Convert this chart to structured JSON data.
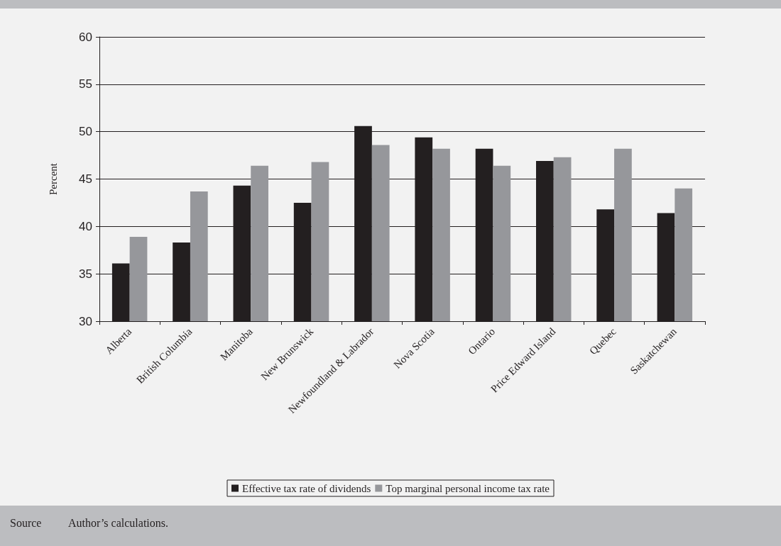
{
  "chart_data": {
    "type": "bar",
    "ylabel": "Percent",
    "categories": [
      "Alberta",
      "British Columbia",
      "Manitoba",
      "New Brunswick",
      "Newfoundland & Labrador",
      "Nova Scotia",
      "Ontario",
      "Price Edward Island",
      "Quebec",
      "Saskatchewan"
    ],
    "series": [
      {
        "name": "Effective tax rate of dividends",
        "color": "#231f20",
        "values": [
          36.1,
          38.3,
          44.3,
          42.5,
          50.6,
          49.4,
          48.2,
          46.9,
          41.8,
          41.4
        ]
      },
      {
        "name": "Top marginal personal income tax rate",
        "color": "#96979b",
        "values": [
          38.9,
          43.7,
          46.4,
          46.8,
          48.6,
          48.2,
          46.4,
          47.3,
          48.2,
          44.0
        ]
      }
    ],
    "ylim": [
      30,
      60
    ],
    "yticks": [
      30,
      35,
      40,
      45,
      50,
      55,
      60
    ],
    "grid": "y",
    "legend": "bottom",
    "annotations": [
      "Source",
      "Author’s calculations."
    ]
  }
}
